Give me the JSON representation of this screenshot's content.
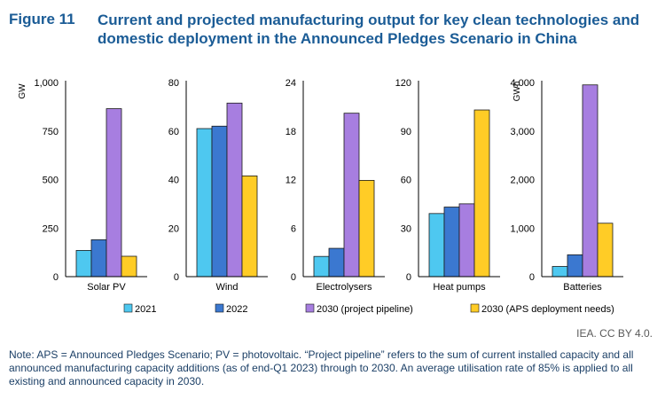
{
  "figure": {
    "label": "Figure 11",
    "title": "Current and projected manufacturing output for key clean technologies and domestic deployment in the Announced Pledges Scenario in China"
  },
  "chart_data": {
    "type": "bar",
    "series": [
      {
        "name": "2021",
        "color": "#4ec8f0"
      },
      {
        "name": "2022",
        "color": "#3b78d0"
      },
      {
        "name": "2030 (project pipeline)",
        "color": "#a77ee0"
      },
      {
        "name": "2030 (APS deployment needs)",
        "color": "#ffcc26"
      }
    ],
    "panels": [
      {
        "category": "Solar PV",
        "unit": "GW",
        "ylim": [
          0,
          1000
        ],
        "ticks": [
          "0",
          "250",
          "500",
          "750",
          "1,000"
        ],
        "values": [
          135,
          190,
          865,
          105
        ]
      },
      {
        "category": "Wind",
        "unit": "",
        "ylim": [
          0,
          80
        ],
        "ticks": [
          "0",
          "20",
          "40",
          "60",
          "80"
        ],
        "values": [
          61,
          62,
          71.5,
          41.5
        ]
      },
      {
        "category": "Electrolysers",
        "unit": "",
        "ylim": [
          0,
          24
        ],
        "ticks": [
          "0",
          "6",
          "12",
          "18",
          "24"
        ],
        "values": [
          2.5,
          3.5,
          20.2,
          11.9
        ]
      },
      {
        "category": "Heat pumps",
        "unit": "",
        "ylim": [
          0,
          120
        ],
        "ticks": [
          "0",
          "30",
          "60",
          "90",
          "120"
        ],
        "values": [
          39,
          43,
          45,
          103
        ]
      },
      {
        "category": "Batteries",
        "unit": "GWh",
        "ylim": [
          0,
          4000
        ],
        "ticks": [
          "0",
          "1,000",
          "2,000",
          "3,000",
          "4,000"
        ],
        "values": [
          210,
          450,
          3950,
          1100
        ]
      }
    ]
  },
  "credit": "IEA. CC BY 4.0.",
  "note": "Note: APS = Announced Pledges Scenario; PV = photovoltaic. “Project pipeline” refers to the sum of current installed capacity and all announced manufacturing capacity additions (as of end-Q1 2023) through to 2030. An average utilisation rate of 85% is applied to all existing and announced capacity in 2030."
}
